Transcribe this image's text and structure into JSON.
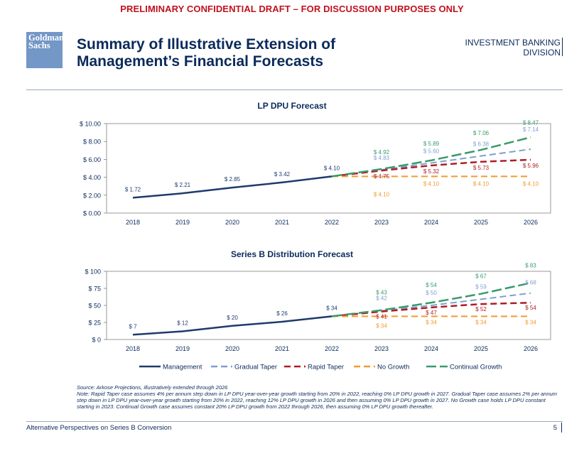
{
  "banner": "PRELIMINARY CONFIDENTIAL DRAFT – FOR DISCUSSION PURPOSES ONLY",
  "logo": {
    "line1": "Goldman",
    "line2": "Sachs"
  },
  "title": {
    "line1": "Summary of Illustrative Extension of",
    "line2": "Management’s Financial Forecasts"
  },
  "division": {
    "line1": "INVESTMENT BANKING",
    "line2": "DIVISION"
  },
  "colors": {
    "Management": "#1f3a6e",
    "Gradual Taper": "#7f9fd0",
    "Rapid Taper": "#b01c24",
    "No Growth": "#f39a2e",
    "Continual Growth": "#3a9a6a"
  },
  "chart_data": [
    {
      "type": "line",
      "title": "LP DPU Forecast",
      "x": [
        "2018",
        "2019",
        "2020",
        "2021",
        "2022",
        "2023",
        "2024",
        "2025",
        "2026"
      ],
      "ylim": [
        0,
        10
      ],
      "yticks": [
        0,
        2,
        4,
        6,
        8,
        10
      ],
      "ytick_labels": [
        "$ 0.00",
        "$ 2.00",
        "$ 4.00",
        "$ 6.00",
        "$ 8.00",
        "$ 10.00"
      ],
      "series": [
        {
          "name": "Management",
          "x": [
            "2018",
            "2019",
            "2020",
            "2021",
            "2022"
          ],
          "values": [
            1.72,
            2.21,
            2.85,
            3.42,
            4.1
          ],
          "labels": [
            "$ 1.72",
            "$ 2.21",
            "$ 2.85",
            "$ 3.42",
            "$ 4.10"
          ]
        },
        {
          "name": "Gradual Taper",
          "x": [
            "2022",
            "2023",
            "2024",
            "2025",
            "2026"
          ],
          "values": [
            4.1,
            4.83,
            5.6,
            6.38,
            7.14
          ],
          "labels": [
            "",
            "$ 4.83",
            "$ 5.60",
            "$ 6.38",
            "$ 7.14"
          ]
        },
        {
          "name": "Rapid Taper",
          "x": [
            "2022",
            "2023",
            "2024",
            "2025",
            "2026"
          ],
          "values": [
            4.1,
            4.75,
            5.32,
            5.73,
            5.96
          ],
          "labels": [
            "",
            "$ 4.75",
            "$ 5.32",
            "$ 5.73",
            "$ 5.96"
          ]
        },
        {
          "name": "No Growth",
          "x": [
            "2022",
            "2023",
            "2024",
            "2025",
            "2026"
          ],
          "values": [
            4.1,
            4.1,
            4.1,
            4.1,
            4.1
          ],
          "labels": [
            "",
            "$ 4.10",
            "$ 4.10",
            "$ 4.10",
            "$ 4.10"
          ]
        },
        {
          "name": "Continual Growth",
          "x": [
            "2022",
            "2023",
            "2024",
            "2025",
            "2026"
          ],
          "values": [
            4.1,
            4.92,
            5.89,
            7.06,
            8.47
          ],
          "labels": [
            "",
            "$ 4.92",
            "$ 5.89",
            "$ 7.06",
            "$ 8.47"
          ]
        }
      ]
    },
    {
      "type": "line",
      "title": "Series B Distribution Forecast",
      "x": [
        "2018",
        "2019",
        "2020",
        "2021",
        "2022",
        "2023",
        "2024",
        "2025",
        "2026"
      ],
      "ylim": [
        0,
        100
      ],
      "yticks": [
        0,
        25,
        50,
        75,
        100
      ],
      "ytick_labels": [
        "$ 0",
        "$ 25",
        "$ 50",
        "$ 75",
        "$ 100"
      ],
      "series": [
        {
          "name": "Management",
          "x": [
            "2018",
            "2019",
            "2020",
            "2021",
            "2022"
          ],
          "values": [
            7,
            12,
            20,
            26,
            34
          ],
          "labels": [
            "$ 7",
            "$ 12",
            "$ 20",
            "$ 26",
            "$ 34"
          ]
        },
        {
          "name": "Gradual Taper",
          "x": [
            "2022",
            "2023",
            "2024",
            "2025",
            "2026"
          ],
          "values": [
            34,
            42,
            50,
            59,
            68
          ],
          "labels": [
            "",
            "$ 42",
            "$ 50",
            "$ 59",
            "$ 68"
          ]
        },
        {
          "name": "Rapid Taper",
          "x": [
            "2022",
            "2023",
            "2024",
            "2025",
            "2026"
          ],
          "values": [
            34,
            41,
            47,
            52,
            54
          ],
          "labels": [
            "",
            "$ 41",
            "$ 47",
            "$ 52",
            "$ 54"
          ]
        },
        {
          "name": "No Growth",
          "x": [
            "2022",
            "2023",
            "2024",
            "2025",
            "2026"
          ],
          "values": [
            34,
            34,
            34,
            34,
            34
          ],
          "labels": [
            "",
            "$ 34",
            "$ 34",
            "$ 34",
            "$ 34"
          ]
        },
        {
          "name": "Continual Growth",
          "x": [
            "2022",
            "2023",
            "2024",
            "2025",
            "2026"
          ],
          "values": [
            34,
            43,
            54,
            67,
            83
          ],
          "labels": [
            "",
            "$ 43",
            "$ 54",
            "$ 67",
            "$ 83"
          ]
        }
      ]
    }
  ],
  "legend": [
    "Management",
    "Gradual Taper",
    "Rapid Taper",
    "No Growth",
    "Continual Growth"
  ],
  "notes": {
    "source": "Source: Arkose Projections, illustratively extended through 2026",
    "note": "Note: Rapid Taper case assumes 4% per annum step down in LP DPU year-over-year growth starting from 20% in 2022, reaching 0% LP DPU growth in 2027. Gradual Taper case assumes 2% per annum step down in LP DPU year-over-year growth starting from 20% in 2022, reaching 12% LP DPU growth in 2026 and then assuming 0% LP DPU growth in 2027. No Growth case holds LP DPU constant starting in 2023. Continual Growth case assumes constant 20% LP DPU growth from 2022 through 2026, then assuming 0% LP DPU growth thereafter."
  },
  "footer": {
    "text": "Alternative Perspectives on Series B Conversion",
    "page": "5"
  }
}
